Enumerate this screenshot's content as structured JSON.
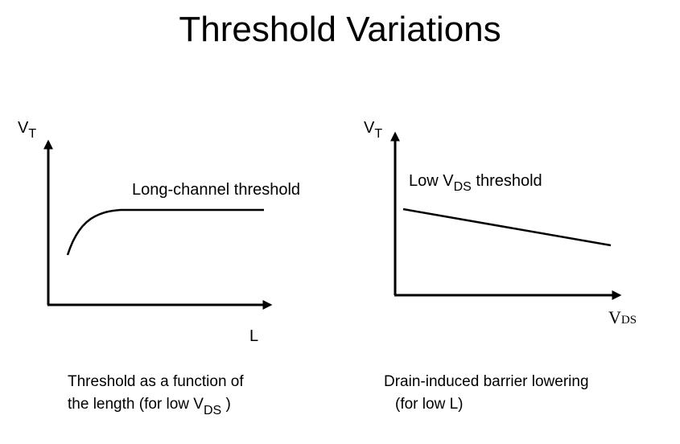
{
  "title": "Threshold Variations",
  "left_panel": {
    "y_axis_symbol": "V",
    "y_axis_subscript": "T",
    "x_axis_label": "L",
    "curve_label": "Long-channel threshold",
    "caption_line1": "Threshold as a function of",
    "caption_line2_prefix": "the length (for low  V",
    "caption_line2_subscript": "DS",
    "caption_line2_suffix": " )"
  },
  "right_panel": {
    "y_axis_symbol": "V",
    "y_axis_subscript": "T",
    "x_axis_symbol": "V",
    "x_axis_subscript": "DS",
    "line_label_prefix": "Low  V",
    "line_label_subscript": "DS",
    "line_label_suffix": "  threshold",
    "caption_line1": "Drain-induced barrier lowering",
    "caption_line2": "(for low  L)"
  }
}
